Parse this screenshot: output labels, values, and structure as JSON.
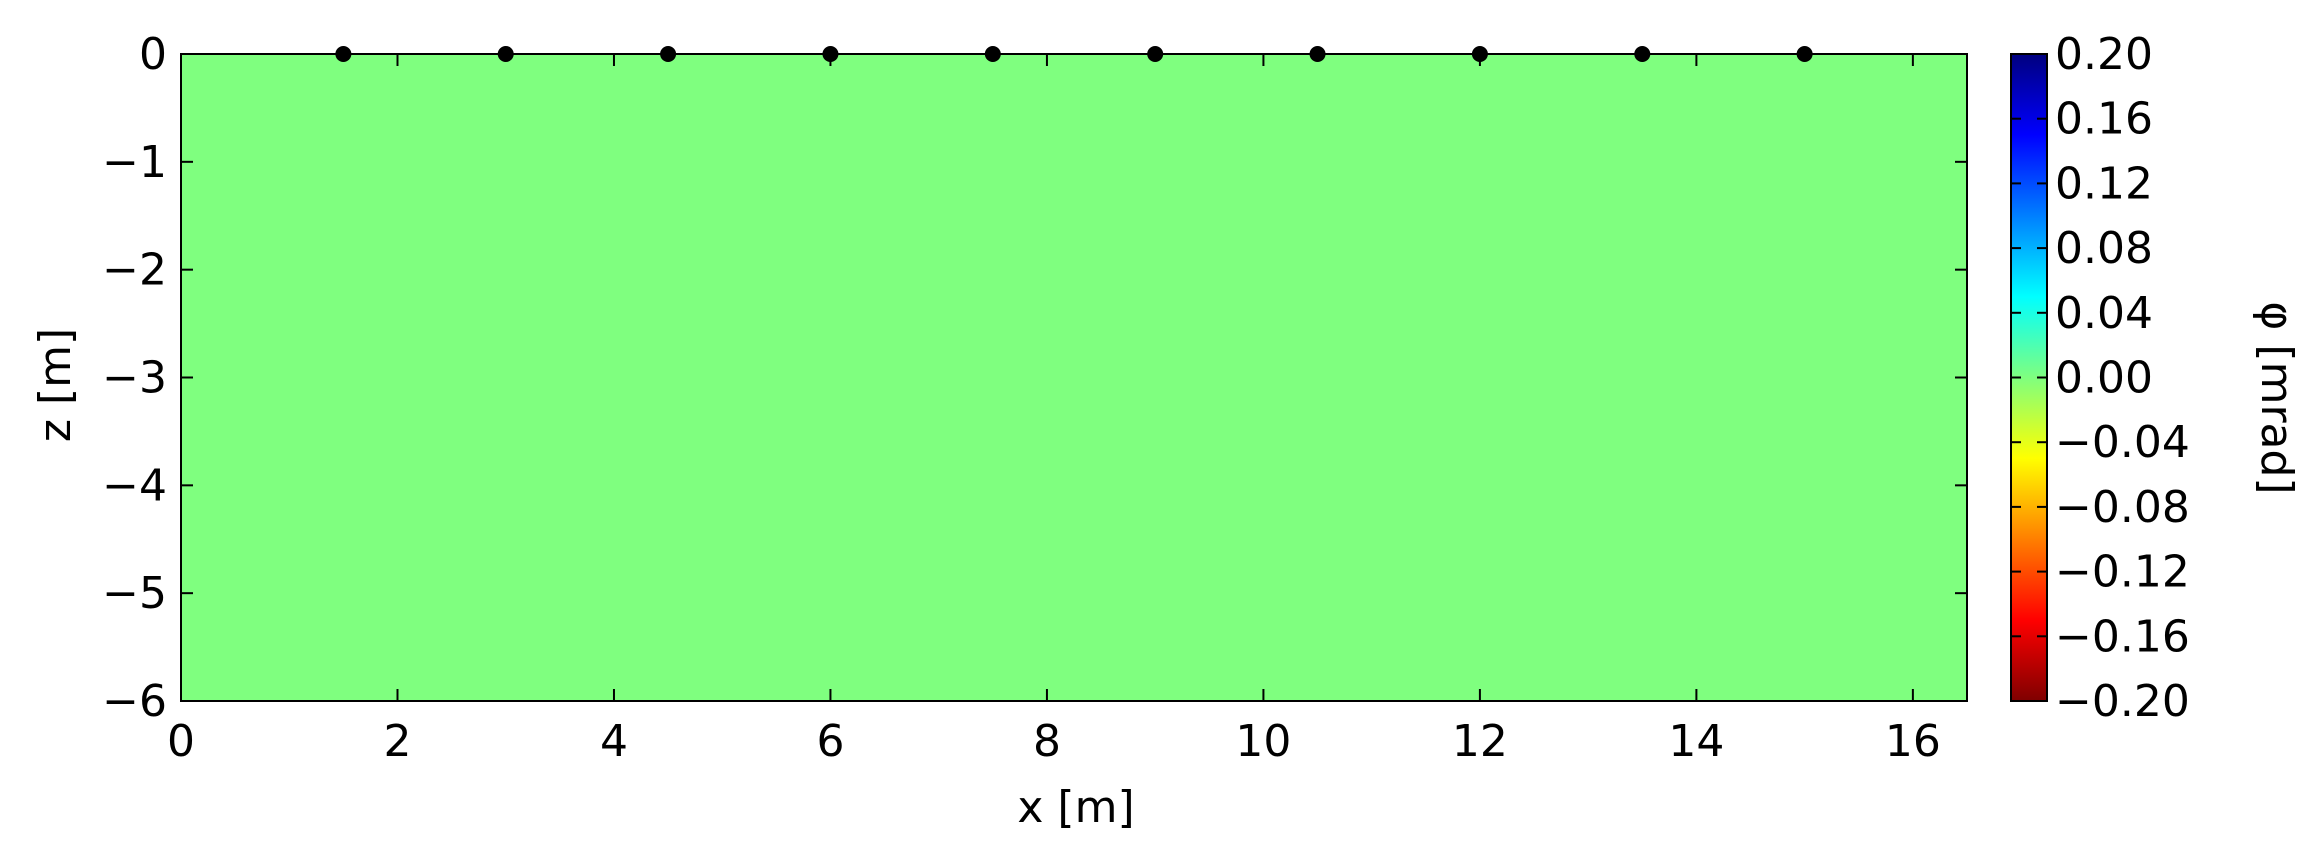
{
  "chart_data": {
    "type": "heatmap",
    "xlabel": "x [m]",
    "ylabel": "z [m]",
    "xlim": [
      0,
      16.5
    ],
    "ylim": [
      -6,
      0
    ],
    "x_ticks": [
      "0",
      "2",
      "4",
      "6",
      "8",
      "10",
      "12",
      "14",
      "16"
    ],
    "x_tick_values": [
      0,
      2,
      4,
      6,
      8,
      10,
      12,
      14,
      16
    ],
    "y_ticks": [
      "0",
      "−1",
      "−2",
      "−3",
      "−4",
      "−5",
      "−6"
    ],
    "y_tick_values": [
      0,
      -1,
      -2,
      -3,
      -4,
      -5,
      -6
    ],
    "field_value": 0.0,
    "field_color": "#7fff7f",
    "electrodes": {
      "x": [
        1.5,
        3.0,
        4.5,
        6.0,
        7.5,
        9.0,
        10.5,
        12.0,
        13.5,
        15.0
      ],
      "z": [
        0,
        0,
        0,
        0,
        0,
        0,
        0,
        0,
        0,
        0
      ],
      "color": "#000000"
    },
    "colorbar": {
      "label": "φ [mrad]",
      "range": [
        -0.2,
        0.2
      ],
      "colormap": "jet_r",
      "ticks": [
        "0.20",
        "0.16",
        "0.12",
        "0.08",
        "0.04",
        "0.00",
        "−0.04",
        "−0.08",
        "−0.12",
        "−0.16",
        "−0.20"
      ],
      "tick_values": [
        0.2,
        0.16,
        0.12,
        0.08,
        0.04,
        0.0,
        -0.04,
        -0.08,
        -0.12,
        -0.16,
        -0.2
      ],
      "stops": [
        "#7f0000",
        "#ff0000",
        "#ff7f00",
        "#ffff00",
        "#7fff7f",
        "#00ffff",
        "#007fff",
        "#0000ff",
        "#00007f"
      ]
    }
  }
}
